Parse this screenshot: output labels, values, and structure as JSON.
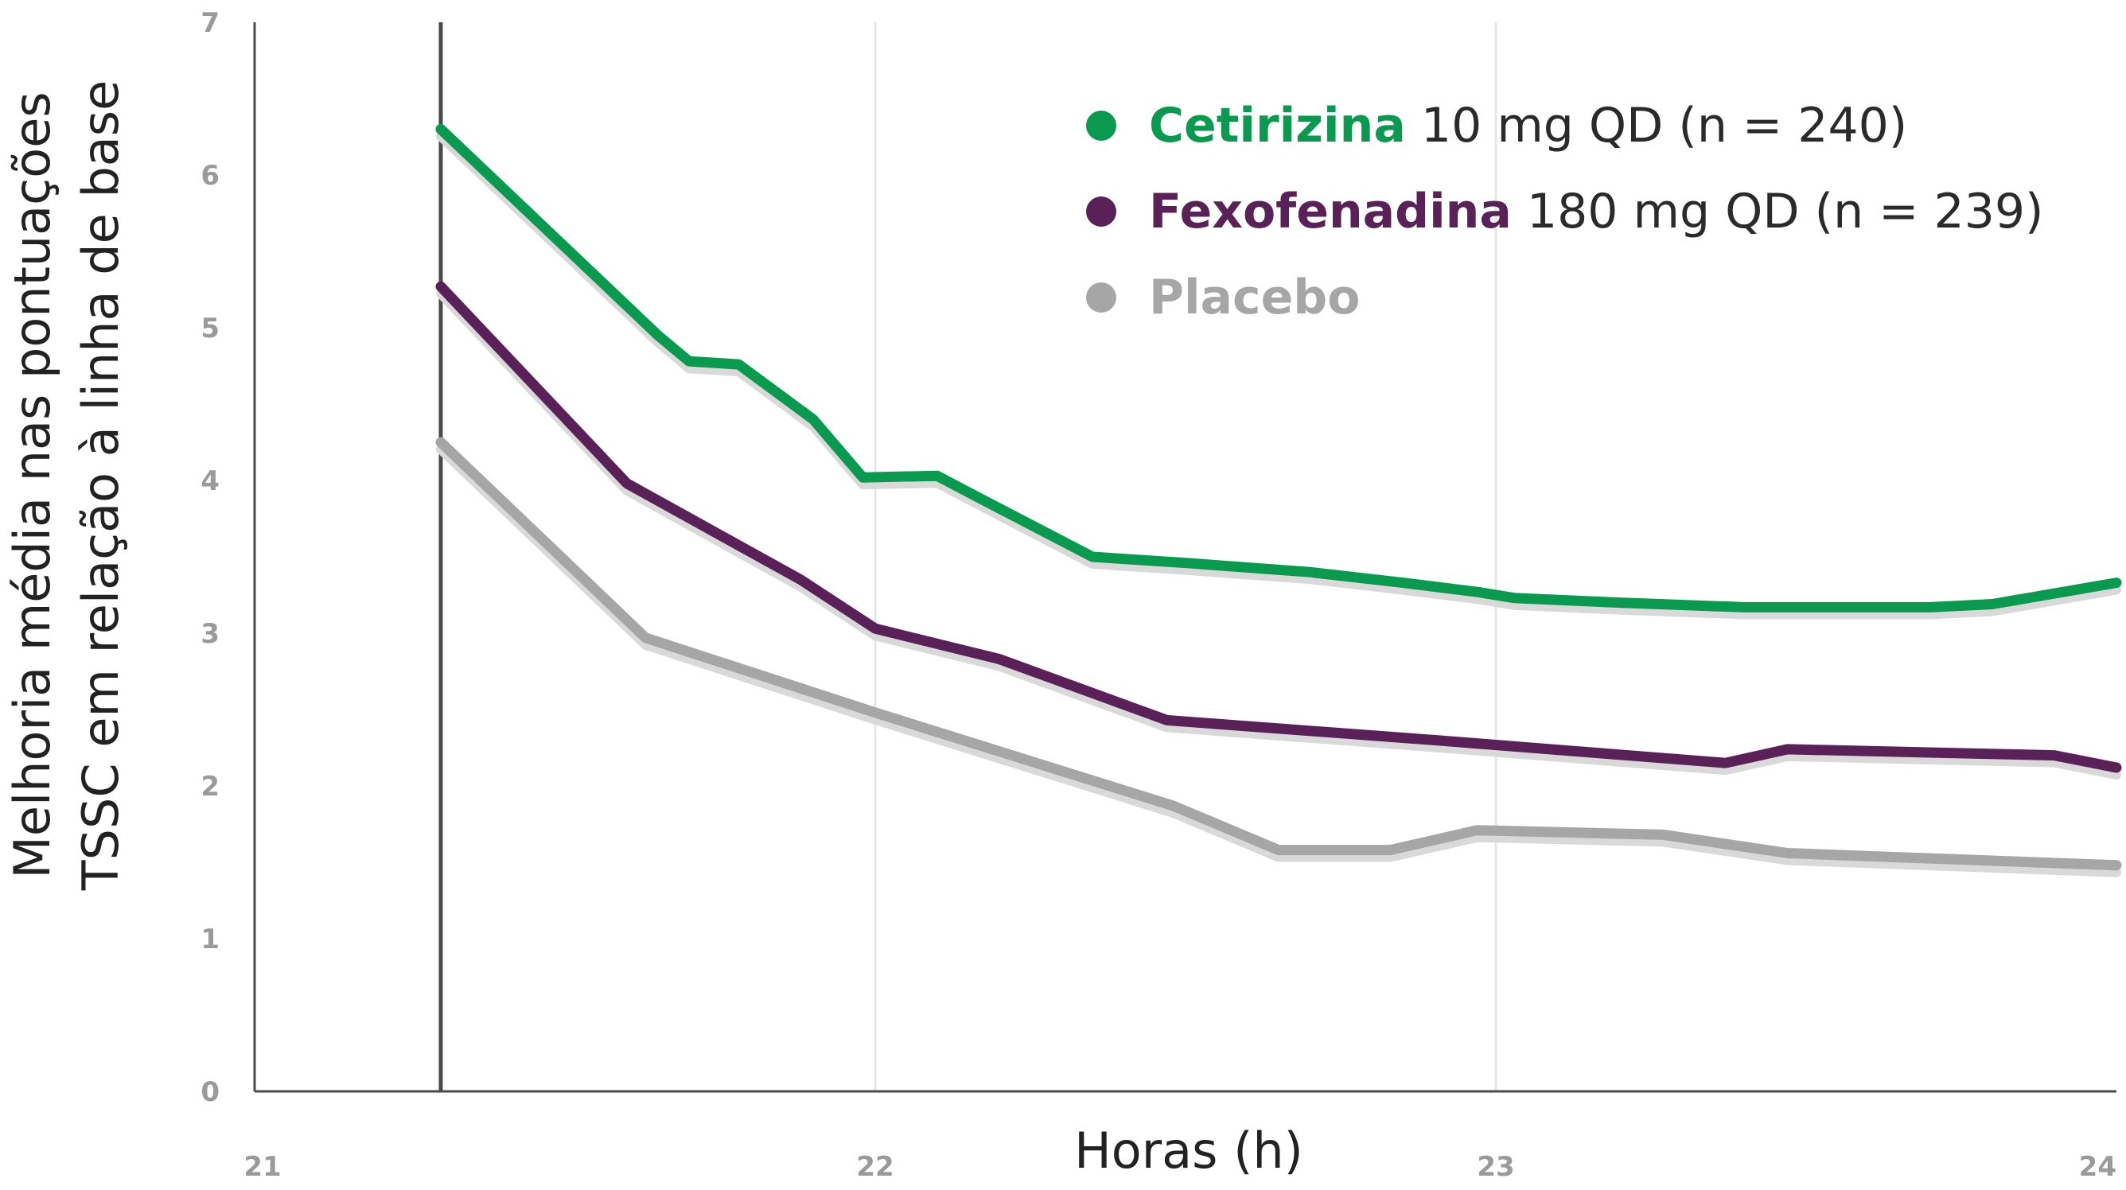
{
  "chart_data": {
    "type": "line",
    "xlabel": "Horas (h)",
    "ylabel_lines": [
      "Melhoria média nas pontuações",
      "TSSC em relação à linha de base"
    ],
    "xlim": [
      21,
      24
    ],
    "ylim": [
      0,
      7
    ],
    "x_ticks": [
      "21",
      "22",
      "23",
      "24"
    ],
    "y_ticks": [
      "0",
      "1",
      "2",
      "3",
      "4",
      "5",
      "6",
      "7"
    ],
    "grid": "vertical",
    "reference_line_x": 21.3,
    "legend_position": "top-right",
    "series": [
      {
        "name": "Cetirizina",
        "dose": "10 mg QD (n = 240)",
        "color": "#0a9a4f",
        "points": [
          [
            21.3,
            6.3
          ],
          [
            21.65,
            4.95
          ],
          [
            21.7,
            4.78
          ],
          [
            21.78,
            4.76
          ],
          [
            21.9,
            4.4
          ],
          [
            21.98,
            4.02
          ],
          [
            22.1,
            4.03
          ],
          [
            22.17,
            3.88
          ],
          [
            22.35,
            3.5
          ],
          [
            22.5,
            3.46
          ],
          [
            22.7,
            3.4
          ],
          [
            22.85,
            3.33
          ],
          [
            22.97,
            3.27
          ],
          [
            23.03,
            3.23
          ],
          [
            23.2,
            3.2
          ],
          [
            23.4,
            3.17
          ],
          [
            23.7,
            3.17
          ],
          [
            23.8,
            3.19
          ],
          [
            24.0,
            3.33
          ]
        ]
      },
      {
        "name": "Fexofenadina",
        "dose": "180 mg QD (n = 239)",
        "color": "#5a2058",
        "points": [
          [
            21.3,
            5.27
          ],
          [
            21.6,
            3.98
          ],
          [
            21.88,
            3.35
          ],
          [
            22.0,
            3.03
          ],
          [
            22.2,
            2.83
          ],
          [
            22.47,
            2.43
          ],
          [
            22.9,
            2.3
          ],
          [
            23.37,
            2.15
          ],
          [
            23.47,
            2.24
          ],
          [
            23.9,
            2.2
          ],
          [
            24.0,
            2.12
          ]
        ]
      },
      {
        "name": "Placebo",
        "dose": "",
        "color": "#a6a6a6",
        "points": [
          [
            21.3,
            4.25
          ],
          [
            21.63,
            2.97
          ],
          [
            22.0,
            2.48
          ],
          [
            22.48,
            1.87
          ],
          [
            22.65,
            1.58
          ],
          [
            22.83,
            1.58
          ],
          [
            22.97,
            1.71
          ],
          [
            23.27,
            1.68
          ],
          [
            23.47,
            1.56
          ],
          [
            24.0,
            1.48
          ]
        ]
      }
    ]
  }
}
